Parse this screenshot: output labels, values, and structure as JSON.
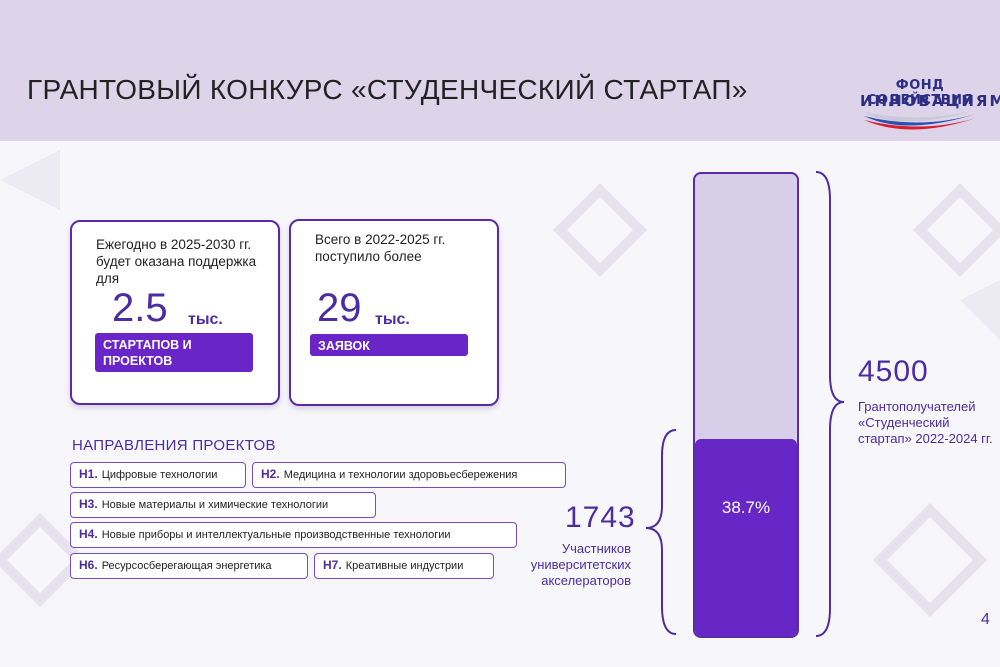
{
  "header": {
    "title": "ГРАНТОВЫЙ КОНКУРС «СТУДЕНЧЕСКИЙ СТАРТАП»",
    "logo_line1": "ФОНД СОДЕЙСТВИЯ",
    "logo_line2": "ИННОВАЦИЯМ"
  },
  "card1": {
    "text": "Ежегодно в 2025-2030 гг. будет оказана поддержка для",
    "number": "2.5",
    "unit": "тыс.",
    "tag": "СТАРТАПОВ И ПРОЕКТОВ"
  },
  "card2": {
    "text": "Всего в 2022-2025 гг. поступило более",
    "number": "29",
    "unit": "тыс.",
    "tag": "ЗАЯВОК"
  },
  "directions": {
    "title": "НАПРАВЛЕНИЯ ПРОЕКТОВ",
    "items": [
      {
        "code": "Н1.",
        "label": "Цифровые технологии"
      },
      {
        "code": "Н2.",
        "label": "Медицина и технологии здоровьесбережения"
      },
      {
        "code": "Н3.",
        "label": "Новые материалы и химические технологии"
      },
      {
        "code": "Н4.",
        "label": "Новые приборы и интеллектуальные производственные технологии"
      },
      {
        "code": "Н6.",
        "label": "Ресурсосберегающая энергетика"
      },
      {
        "code": "Н7.",
        "label": "Креативные индустрии"
      }
    ]
  },
  "stats": {
    "total_value": "4500",
    "total_label": "Грантополучателей «Студенческий стартап» 2022-2024 гг.",
    "part_value": "1743",
    "part_label": "Участников университетских акселераторов",
    "share": 0.387,
    "share_label": "38.7%"
  },
  "page_number": "4",
  "colors": {
    "accent": "#6726c6",
    "dark_purple": "#4b2ca2",
    "header_bg": "#ddd4ea",
    "bar_light": "#d7cfe9"
  }
}
